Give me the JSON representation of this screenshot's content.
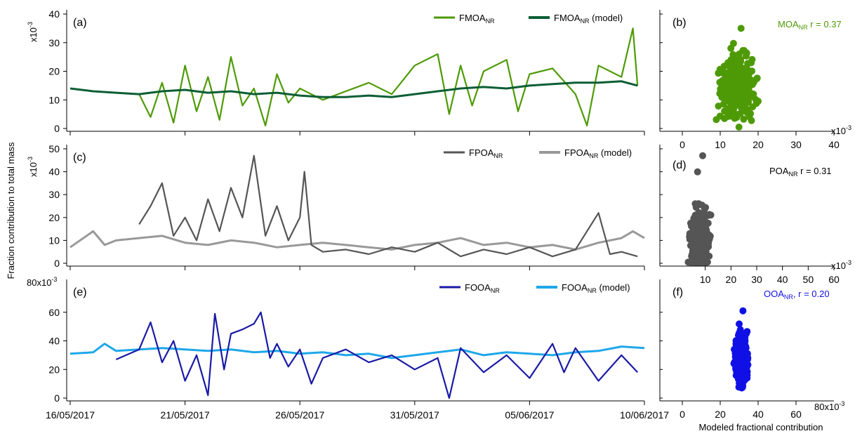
{
  "figure": {
    "y_axis_title": "Fraction contribution to total mass",
    "x_axis_title_scatter": "Modeled fractional contribution"
  },
  "chart_data": [
    {
      "id": "a",
      "type": "line",
      "panel_label": "(a)",
      "scale_label": "x10",
      "scale_exp": "-3",
      "x_type": "date",
      "x_range": [
        "2017-05-16",
        "2017-06-10"
      ],
      "x_ticks": [
        "16/05/2017",
        "21/05/2017",
        "26/05/2017",
        "31/05/2017",
        "05/06/2017",
        "10/06/2017"
      ],
      "ylim": [
        0,
        40
      ],
      "yticks": [
        0,
        10,
        20,
        30,
        40
      ],
      "legend_placement": "top-right",
      "series": [
        {
          "name": "FMOA",
          "name_sub": "NR",
          "color": "#4e9a06",
          "points": [
            [
              "2017-05-19",
              12
            ],
            [
              "2017-05-19.5",
              4
            ],
            [
              "2017-05-20",
              16
            ],
            [
              "2017-05-20.5",
              2
            ],
            [
              "2017-05-21",
              22
            ],
            [
              "2017-05-21.5",
              6
            ],
            [
              "2017-05-22",
              18
            ],
            [
              "2017-05-22.5",
              3
            ],
            [
              "2017-05-23",
              25
            ],
            [
              "2017-05-23.5",
              8
            ],
            [
              "2017-05-24",
              14
            ],
            [
              "2017-05-24.5",
              1
            ],
            [
              "2017-05-25",
              19
            ],
            [
              "2017-05-25.5",
              9
            ],
            [
              "2017-05-26",
              14
            ],
            [
              "2017-05-27",
              10
            ],
            [
              "2017-05-28",
              13
            ],
            [
              "2017-05-29",
              16
            ],
            [
              "2017-05-30",
              12
            ],
            [
              "2017-05-31",
              22
            ],
            [
              "2017-06-01",
              26
            ],
            [
              "2017-06-01.5",
              5
            ],
            [
              "2017-06-02",
              22
            ],
            [
              "2017-06-02.5",
              8
            ],
            [
              "2017-06-03",
              20
            ],
            [
              "2017-06-04",
              24
            ],
            [
              "2017-06-04.5",
              6
            ],
            [
              "2017-06-05",
              19
            ],
            [
              "2017-06-06",
              21
            ],
            [
              "2017-06-07",
              12
            ],
            [
              "2017-06-07.5",
              1
            ],
            [
              "2017-06-08",
              22
            ],
            [
              "2017-06-09",
              18
            ],
            [
              "2017-06-09.5",
              35
            ],
            [
              "2017-06-09.7",
              15
            ]
          ]
        },
        {
          "name": "FMOA",
          "name_sub": "NR",
          "name_suffix": " (model)",
          "color": "#0b5e34",
          "points": [
            [
              "2017-05-16",
              14
            ],
            [
              "2017-05-17",
              13
            ],
            [
              "2017-05-18",
              12.5
            ],
            [
              "2017-05-19",
              12
            ],
            [
              "2017-05-20",
              13
            ],
            [
              "2017-05-21",
              13.5
            ],
            [
              "2017-05-22",
              12.5
            ],
            [
              "2017-05-23",
              13
            ],
            [
              "2017-05-24",
              12
            ],
            [
              "2017-05-25",
              12.5
            ],
            [
              "2017-05-26",
              11.5
            ],
            [
              "2017-05-27",
              11
            ],
            [
              "2017-05-28",
              11
            ],
            [
              "2017-05-29",
              11.5
            ],
            [
              "2017-05-30",
              11
            ],
            [
              "2017-05-31",
              12
            ],
            [
              "2017-06-01",
              13
            ],
            [
              "2017-06-02",
              14
            ],
            [
              "2017-06-03",
              14.5
            ],
            [
              "2017-06-04",
              14
            ],
            [
              "2017-06-05",
              15
            ],
            [
              "2017-06-06",
              15.5
            ],
            [
              "2017-06-07",
              16
            ],
            [
              "2017-06-08",
              16
            ],
            [
              "2017-06-09",
              16.5
            ],
            [
              "2017-06-09.7",
              15
            ]
          ]
        }
      ]
    },
    {
      "id": "b",
      "type": "scatter",
      "panel_label": "(b)",
      "annotation_name": "MOA",
      "annotation_sub": "NR",
      "annotation_r": "r = 0.37",
      "color": "#4e9a06",
      "xlim": [
        0,
        40
      ],
      "xticks": [
        0,
        10,
        20,
        30,
        40
      ],
      "x_scale_label": "x10",
      "x_scale_exp": "-3",
      "cluster": {
        "x_center": 14.5,
        "x_spread": 3,
        "y_center": 14,
        "y_spread": 8,
        "y_min": 0.5,
        "y_max": 35
      }
    },
    {
      "id": "c",
      "type": "line",
      "panel_label": "(c)",
      "scale_label": "x10",
      "scale_exp": "-3",
      "x_type": "date",
      "x_range": [
        "2017-05-16",
        "2017-06-10"
      ],
      "ylim": [
        0,
        50
      ],
      "yticks": [
        0,
        10,
        20,
        30,
        40,
        50
      ],
      "legend_placement": "top-right",
      "series": [
        {
          "name": "FPOA",
          "name_sub": "NR",
          "color": "#555555",
          "points": [
            [
              "2017-05-19",
              17
            ],
            [
              "2017-05-19.5",
              25
            ],
            [
              "2017-05-20",
              35
            ],
            [
              "2017-05-20.5",
              12
            ],
            [
              "2017-05-21",
              20
            ],
            [
              "2017-05-21.5",
              10
            ],
            [
              "2017-05-22",
              28
            ],
            [
              "2017-05-22.5",
              14
            ],
            [
              "2017-05-23",
              33
            ],
            [
              "2017-05-23.5",
              20
            ],
            [
              "2017-05-24",
              47
            ],
            [
              "2017-05-24.5",
              12
            ],
            [
              "2017-05-25",
              25
            ],
            [
              "2017-05-25.5",
              10
            ],
            [
              "2017-05-26",
              20
            ],
            [
              "2017-05-26.2",
              40
            ],
            [
              "2017-05-26.5",
              8
            ],
            [
              "2017-05-27",
              5
            ],
            [
              "2017-05-28",
              6
            ],
            [
              "2017-05-29",
              4
            ],
            [
              "2017-05-30",
              7
            ],
            [
              "2017-05-31",
              5
            ],
            [
              "2017-06-01",
              9
            ],
            [
              "2017-06-02",
              3
            ],
            [
              "2017-06-03",
              6
            ],
            [
              "2017-06-04",
              4
            ],
            [
              "2017-06-05",
              7
            ],
            [
              "2017-06-06",
              3
            ],
            [
              "2017-06-07",
              6
            ],
            [
              "2017-06-08",
              22
            ],
            [
              "2017-06-08.5",
              4
            ],
            [
              "2017-06-09",
              5
            ],
            [
              "2017-06-09.7",
              3
            ]
          ]
        },
        {
          "name": "FPOA",
          "name_sub": "NR",
          "name_suffix": " (model)",
          "color": "#999999",
          "points": [
            [
              "2017-05-16",
              7
            ],
            [
              "2017-05-17",
              14
            ],
            [
              "2017-05-17.5",
              8
            ],
            [
              "2017-05-18",
              10
            ],
            [
              "2017-05-19",
              11
            ],
            [
              "2017-05-20",
              12
            ],
            [
              "2017-05-21",
              9
            ],
            [
              "2017-05-22",
              8
            ],
            [
              "2017-05-23",
              10
            ],
            [
              "2017-05-24",
              9
            ],
            [
              "2017-05-25",
              7
            ],
            [
              "2017-05-26",
              8
            ],
            [
              "2017-05-27",
              9
            ],
            [
              "2017-05-28",
              8
            ],
            [
              "2017-05-29",
              7
            ],
            [
              "2017-05-30",
              6
            ],
            [
              "2017-05-31",
              8
            ],
            [
              "2017-06-01",
              9
            ],
            [
              "2017-06-02",
              11
            ],
            [
              "2017-06-03",
              8
            ],
            [
              "2017-06-04",
              9
            ],
            [
              "2017-06-05",
              7
            ],
            [
              "2017-06-06",
              8
            ],
            [
              "2017-06-07",
              6
            ],
            [
              "2017-06-08",
              9
            ],
            [
              "2017-06-09",
              11
            ],
            [
              "2017-06-09.5",
              14
            ],
            [
              "2017-06-10",
              11
            ]
          ]
        }
      ]
    },
    {
      "id": "d",
      "type": "scatter",
      "panel_label": "(d)",
      "annotation_name": "POA",
      "annotation_sub": "NR",
      "annotation_r": "r = 0.31",
      "color": "#555555",
      "xlim": [
        0,
        60
      ],
      "xticks": [
        10,
        20,
        30,
        40,
        50,
        60
      ],
      "x_scale_label": "x10",
      "x_scale_exp": "-3",
      "cluster": {
        "x_center": 8,
        "x_spread": 2.5,
        "y_center": 9,
        "y_spread": 9,
        "y_min": 0.5,
        "y_max": 47
      }
    },
    {
      "id": "e",
      "type": "line",
      "panel_label": "(e)",
      "scale_label": "80x10",
      "scale_exp": "-3",
      "x_type": "date",
      "x_range": [
        "2017-05-16",
        "2017-06-10"
      ],
      "ylim": [
        0,
        80
      ],
      "yticks": [
        0,
        20,
        40,
        60
      ],
      "legend_placement": "top-right",
      "series": [
        {
          "name": "FOOA",
          "name_sub": "NR",
          "color": "#1a1aa6",
          "points": [
            [
              "2017-05-18",
              27
            ],
            [
              "2017-05-19",
              34
            ],
            [
              "2017-05-19.5",
              53
            ],
            [
              "2017-05-20",
              25
            ],
            [
              "2017-05-20.5",
              40
            ],
            [
              "2017-05-21",
              12
            ],
            [
              "2017-05-21.5",
              30
            ],
            [
              "2017-05-22",
              2
            ],
            [
              "2017-05-22.3",
              59
            ],
            [
              "2017-05-22.7",
              20
            ],
            [
              "2017-05-23",
              45
            ],
            [
              "2017-05-23.5",
              48
            ],
            [
              "2017-05-24",
              52
            ],
            [
              "2017-05-24.3",
              60
            ],
            [
              "2017-05-24.7",
              28
            ],
            [
              "2017-05-25",
              38
            ],
            [
              "2017-05-25.5",
              22
            ],
            [
              "2017-05-26",
              34
            ],
            [
              "2017-05-26.5",
              10
            ],
            [
              "2017-05-27",
              28
            ],
            [
              "2017-05-28",
              34
            ],
            [
              "2017-05-29",
              25
            ],
            [
              "2017-05-30",
              30
            ],
            [
              "2017-05-31",
              20
            ],
            [
              "2017-06-01",
              28
            ],
            [
              "2017-06-01.5",
              0
            ],
            [
              "2017-06-02",
              35
            ],
            [
              "2017-06-03",
              18
            ],
            [
              "2017-06-04",
              30
            ],
            [
              "2017-06-05",
              14
            ],
            [
              "2017-06-06",
              38
            ],
            [
              "2017-06-06.5",
              18
            ],
            [
              "2017-06-07",
              35
            ],
            [
              "2017-06-08",
              12
            ],
            [
              "2017-06-09",
              30
            ],
            [
              "2017-06-09.7",
              18
            ]
          ]
        },
        {
          "name": "FOOA",
          "name_sub": "NR",
          "name_suffix": " (model)",
          "color": "#1ea7ea",
          "points": [
            [
              "2017-05-16",
              31
            ],
            [
              "2017-05-17",
              32
            ],
            [
              "2017-05-17.5",
              38
            ],
            [
              "2017-05-18",
              33
            ],
            [
              "2017-05-19",
              34
            ],
            [
              "2017-05-20",
              35
            ],
            [
              "2017-05-21",
              34
            ],
            [
              "2017-05-22",
              33
            ],
            [
              "2017-05-23",
              34
            ],
            [
              "2017-05-24",
              32
            ],
            [
              "2017-05-25",
              33
            ],
            [
              "2017-05-26",
              31
            ],
            [
              "2017-05-27",
              32
            ],
            [
              "2017-05-28",
              30
            ],
            [
              "2017-05-29",
              31
            ],
            [
              "2017-05-30",
              28
            ],
            [
              "2017-05-31",
              30
            ],
            [
              "2017-06-01",
              32
            ],
            [
              "2017-06-02",
              34
            ],
            [
              "2017-06-03",
              30
            ],
            [
              "2017-06-04",
              32
            ],
            [
              "2017-06-05",
              31
            ],
            [
              "2017-06-06",
              30
            ],
            [
              "2017-06-07",
              32
            ],
            [
              "2017-06-08",
              33
            ],
            [
              "2017-06-09",
              36
            ],
            [
              "2017-06-10",
              35
            ]
          ]
        }
      ]
    },
    {
      "id": "f",
      "type": "scatter",
      "panel_label": "(f)",
      "annotation_name": "OOA",
      "annotation_sub": "NR",
      "annotation_comma": ",",
      "annotation_r": "r = 0.20",
      "color": "#1010e6",
      "xlim": [
        0,
        80
      ],
      "xticks": [
        0,
        20,
        40,
        60
      ],
      "x_scale_label": "80x10",
      "x_scale_exp": "-3",
      "cluster": {
        "x_center": 31,
        "x_spread": 2.2,
        "y_center": 28,
        "y_spread": 12,
        "y_min": 1,
        "y_max": 61
      }
    }
  ]
}
